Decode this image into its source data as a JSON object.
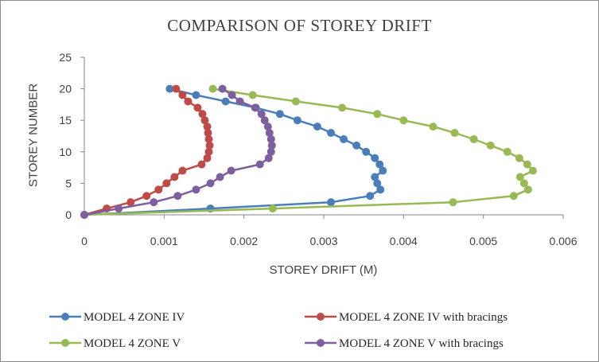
{
  "chart_data": {
    "type": "scatter",
    "title": "COMPARISON OF STOREY DRIFT",
    "xlabel": "STOREY DRIFT (M)",
    "ylabel": "STOREY NUMBER",
    "xlim": [
      0,
      0.006
    ],
    "ylim": [
      0,
      25
    ],
    "x_ticks": [
      "0",
      "0.001",
      "0.002",
      "0.003",
      "0.004",
      "0.005",
      "0.006"
    ],
    "y_ticks": [
      "0",
      "5",
      "10",
      "15",
      "20",
      "25"
    ],
    "grid": false,
    "legend_position": "bottom",
    "series": [
      {
        "name": "MODEL 4 ZONE  IV",
        "color": "#4a7ebb",
        "points": [
          [
            0,
            0
          ],
          [
            0.00158,
            1
          ],
          [
            0.00309,
            2
          ],
          [
            0.00358,
            3
          ],
          [
            0.00371,
            4
          ],
          [
            0.00367,
            5
          ],
          [
            0.00364,
            6
          ],
          [
            0.00374,
            7
          ],
          [
            0.0037,
            8
          ],
          [
            0.00364,
            9
          ],
          [
            0.00353,
            10
          ],
          [
            0.00341,
            11
          ],
          [
            0.00325,
            12
          ],
          [
            0.00309,
            13
          ],
          [
            0.00292,
            14
          ],
          [
            0.00267,
            15
          ],
          [
            0.00245,
            16
          ],
          [
            0.00215,
            17
          ],
          [
            0.00177,
            18
          ],
          [
            0.0014,
            19
          ],
          [
            0.00107,
            20
          ]
        ]
      },
      {
        "name": "MODEL 4 ZONE  IV with bracings",
        "color": "#be4b48",
        "points": [
          [
            0,
            0
          ],
          [
            0.00028,
            1
          ],
          [
            0.00058,
            2
          ],
          [
            0.00078,
            3
          ],
          [
            0.00093,
            4
          ],
          [
            0.00103,
            5
          ],
          [
            0.00113,
            6
          ],
          [
            0.00123,
            7
          ],
          [
            0.00147,
            8
          ],
          [
            0.00154,
            9
          ],
          [
            0.00156,
            10
          ],
          [
            0.00157,
            11
          ],
          [
            0.00156,
            12
          ],
          [
            0.00155,
            13
          ],
          [
            0.00154,
            14
          ],
          [
            0.00151,
            15
          ],
          [
            0.00148,
            16
          ],
          [
            0.00142,
            17
          ],
          [
            0.0013,
            18
          ],
          [
            0.00123,
            19
          ],
          [
            0.00115,
            20
          ]
        ]
      },
      {
        "name": "MODEL 4 ZONE V",
        "color": "#98b954",
        "points": [
          [
            0,
            0
          ],
          [
            0.00236,
            1
          ],
          [
            0.00462,
            2
          ],
          [
            0.00538,
            3
          ],
          [
            0.00556,
            4
          ],
          [
            0.00551,
            5
          ],
          [
            0.00546,
            6
          ],
          [
            0.00562,
            7
          ],
          [
            0.00555,
            8
          ],
          [
            0.00545,
            9
          ],
          [
            0.0053,
            10
          ],
          [
            0.00509,
            11
          ],
          [
            0.00488,
            12
          ],
          [
            0.00464,
            13
          ],
          [
            0.00437,
            14
          ],
          [
            0.004,
            15
          ],
          [
            0.00367,
            16
          ],
          [
            0.00323,
            17
          ],
          [
            0.00265,
            18
          ],
          [
            0.00211,
            19
          ],
          [
            0.00161,
            20
          ]
        ]
      },
      {
        "name": "MODEL 4 ZONE V with bracings",
        "color": "#7d5fa0",
        "points": [
          [
            0,
            0
          ],
          [
            0.00043,
            1
          ],
          [
            0.00087,
            2
          ],
          [
            0.00117,
            3
          ],
          [
            0.0014,
            4
          ],
          [
            0.00158,
            5
          ],
          [
            0.0017,
            6
          ],
          [
            0.00184,
            7
          ],
          [
            0.0022,
            8
          ],
          [
            0.00231,
            9
          ],
          [
            0.00234,
            10
          ],
          [
            0.00235,
            11
          ],
          [
            0.00234,
            12
          ],
          [
            0.00232,
            13
          ],
          [
            0.0023,
            14
          ],
          [
            0.00226,
            15
          ],
          [
            0.00222,
            16
          ],
          [
            0.00214,
            17
          ],
          [
            0.00195,
            18
          ],
          [
            0.00185,
            19
          ],
          [
            0.00173,
            20
          ]
        ]
      }
    ]
  }
}
